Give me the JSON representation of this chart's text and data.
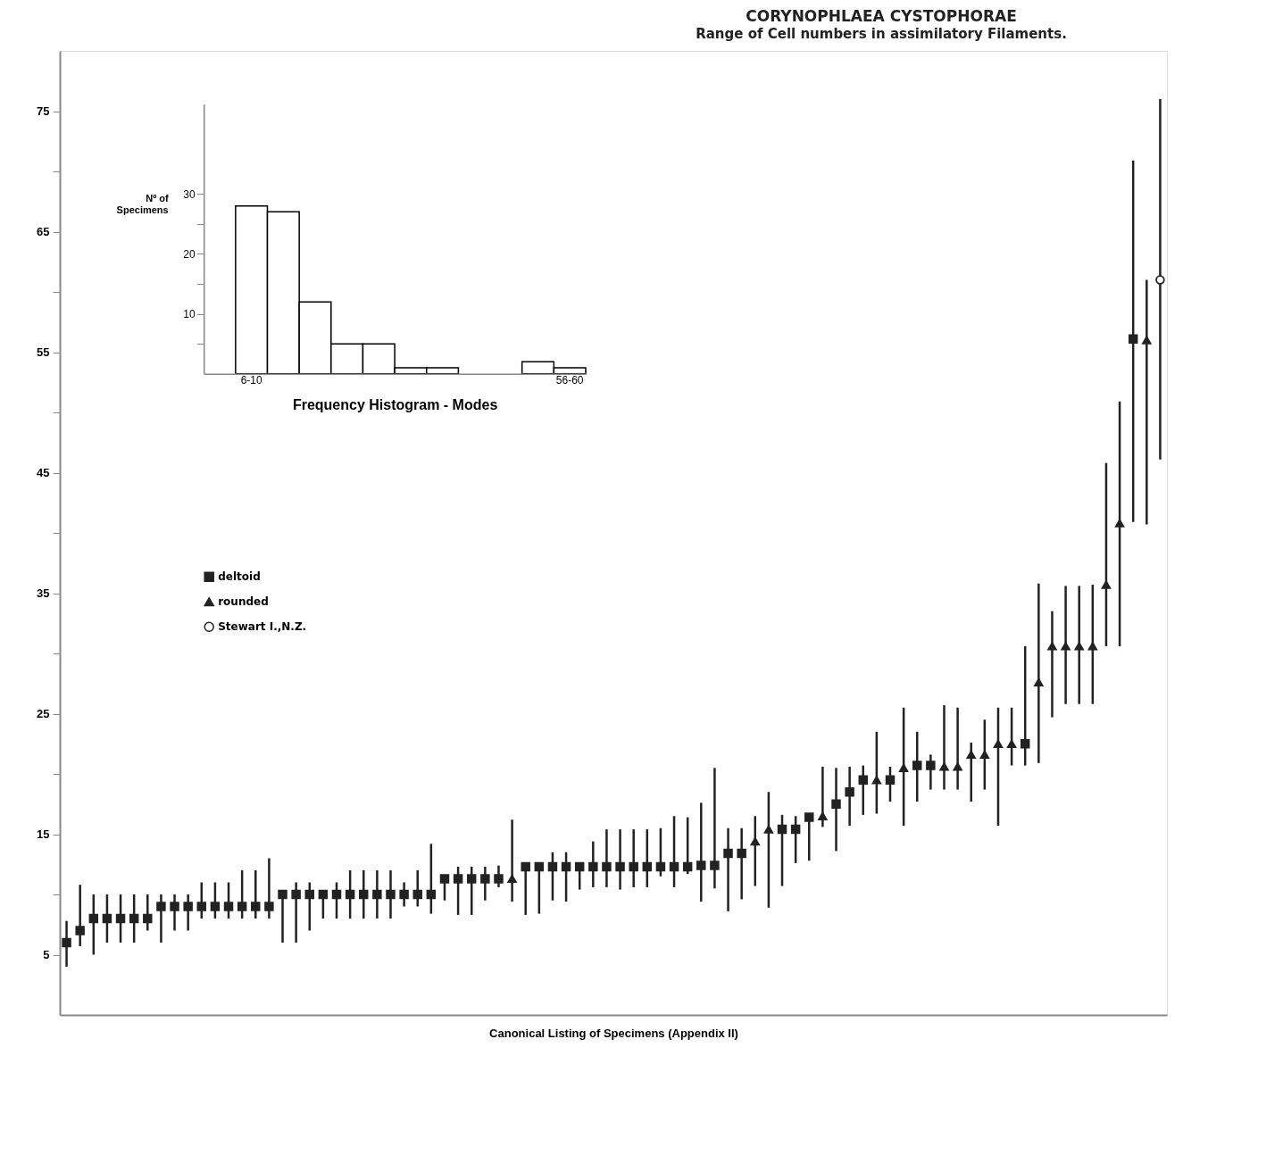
{
  "chart_data": [
    {
      "type": "scatter",
      "title": "CORYNOPHLAEA CYSTOPHORAE",
      "subtitle": "Range of Cell numbers in assimilatory Filaments.",
      "xlabel": "Canonical Listing of Specimens (Appendix II)",
      "categories": [
        null,
        null,
        null,
        null,
        null,
        null,
        null,
        null,
        null,
        null,
        null,
        null,
        null,
        null,
        null,
        null,
        null,
        null,
        null,
        null,
        null,
        null,
        null,
        null,
        null,
        null,
        null,
        null,
        null,
        null,
        null,
        null,
        null,
        null,
        null,
        null,
        null,
        null,
        null,
        null,
        null,
        null,
        null,
        null,
        null,
        null,
        null,
        null,
        null,
        null,
        null,
        null,
        null,
        null,
        null,
        null,
        null,
        null,
        null,
        null,
        null,
        null,
        null,
        null,
        null,
        null,
        null,
        null,
        null,
        null,
        null,
        null,
        null,
        null,
        null,
        null,
        null,
        null,
        null,
        null,
        null,
        null
      ],
      "series": [
        {
          "name": "deltoid",
          "color": "#222222",
          "marker": "square",
          "values": [
            6,
            7,
            8,
            8,
            8,
            8,
            8,
            9,
            9,
            9,
            9,
            9,
            9,
            9,
            9,
            9,
            10,
            10,
            10,
            10,
            10,
            10,
            10,
            10,
            10,
            10,
            10,
            10,
            11.3,
            11.3,
            11.3,
            11.3,
            11.3,
            null,
            12.3,
            12.3,
            12.3,
            12.3,
            12.3,
            12.3,
            12.3,
            12.3,
            12.3,
            12.3,
            12.3,
            12.3,
            12.3,
            12.4,
            12.4,
            13.4,
            13.4,
            null,
            null,
            15.4,
            15.4,
            16.4,
            null,
            17.5,
            18.5,
            19.5,
            null,
            19.5,
            null,
            20.7,
            20.7,
            null,
            null,
            null,
            null,
            null,
            null,
            22.5,
            null,
            null,
            null,
            null,
            null,
            null,
            null,
            56.1,
            null,
            null
          ],
          "errors": [
            [
              4,
              7.8
            ],
            [
              5.7,
              10.8
            ],
            [
              5,
              10
            ],
            [
              6,
              10
            ],
            [
              6,
              10
            ],
            [
              6,
              10
            ],
            [
              7,
              10
            ],
            [
              6,
              10
            ],
            [
              7,
              10
            ],
            [
              7,
              10
            ],
            [
              8,
              11
            ],
            [
              8,
              11
            ],
            [
              8,
              11
            ],
            [
              8,
              12
            ],
            [
              8,
              12
            ],
            [
              8,
              13
            ],
            [
              6,
              10
            ],
            [
              6,
              11
            ],
            [
              7,
              11
            ],
            [
              8,
              10
            ],
            [
              8,
              11
            ],
            [
              8,
              12
            ],
            [
              8,
              12
            ],
            [
              8,
              12
            ],
            [
              8,
              12
            ],
            [
              9,
              11
            ],
            [
              9,
              12
            ],
            [
              8.4,
              14.2
            ],
            [
              9.5,
              11.3
            ],
            [
              8.3,
              12.3
            ],
            [
              8.3,
              12.3
            ],
            [
              9.5,
              12.3
            ],
            [
              10.6,
              12.4
            ],
            null,
            [
              8.3,
              12.3
            ],
            [
              8.4,
              12.3
            ],
            [
              9.5,
              13.5
            ],
            [
              9.4,
              13.5
            ],
            [
              10.4,
              12.3
            ],
            [
              10.6,
              14.4
            ],
            [
              10.6,
              15.4
            ],
            [
              10.4,
              15.4
            ],
            [
              10.6,
              15.4
            ],
            [
              10.6,
              15.4
            ],
            [
              11.5,
              15.5
            ],
            [
              10.6,
              16.5
            ],
            [
              11.7,
              16.4
            ],
            [
              9.4,
              17.6
            ],
            [
              10.5,
              20.5
            ],
            [
              8.6,
              15.5
            ],
            [
              9.6,
              15.5
            ],
            null,
            null,
            [
              10.7,
              16.6
            ],
            [
              12.6,
              16.5
            ],
            [
              12.8,
              16.4
            ],
            null,
            [
              13.6,
              20.5
            ],
            [
              15.7,
              20.6
            ],
            [
              16.6,
              20.7
            ],
            null,
            [
              17.7,
              20.6
            ],
            null,
            [
              17.7,
              23.5
            ],
            [
              18.7,
              21.6
            ],
            null,
            null,
            null,
            null,
            null,
            null,
            [
              20.7,
              30.6
            ],
            null,
            null,
            null,
            null,
            null,
            null,
            null,
            [
              40.9,
              70.9
            ],
            null,
            null
          ]
        },
        {
          "name": "rounded",
          "color": "#222222",
          "marker": "triangle",
          "values": [
            null,
            null,
            null,
            null,
            null,
            null,
            null,
            null,
            null,
            null,
            null,
            null,
            null,
            null,
            null,
            null,
            null,
            null,
            null,
            null,
            null,
            null,
            null,
            null,
            null,
            null,
            null,
            null,
            null,
            null,
            null,
            null,
            null,
            11.3,
            null,
            null,
            null,
            null,
            null,
            null,
            null,
            null,
            null,
            null,
            null,
            null,
            null,
            null,
            null,
            null,
            null,
            14.4,
            15.4,
            null,
            null,
            null,
            16.5,
            null,
            null,
            null,
            19.5,
            null,
            20.5,
            null,
            null,
            20.6,
            20.6,
            21.6,
            21.6,
            22.5,
            22.5,
            null,
            27.6,
            30.6,
            30.6,
            30.6,
            30.6,
            35.7,
            40.8,
            null,
            56.0,
            null
          ],
          "errors": [
            null,
            null,
            null,
            null,
            null,
            null,
            null,
            null,
            null,
            null,
            null,
            null,
            null,
            null,
            null,
            null,
            null,
            null,
            null,
            null,
            null,
            null,
            null,
            null,
            null,
            null,
            null,
            null,
            null,
            null,
            null,
            null,
            null,
            [
              9.4,
              16.2
            ],
            null,
            null,
            null,
            null,
            null,
            null,
            null,
            null,
            null,
            null,
            null,
            null,
            null,
            null,
            null,
            null,
            null,
            [
              10.7,
              16.5
            ],
            [
              8.9,
              18.5
            ],
            null,
            null,
            null,
            [
              15.6,
              20.6
            ],
            null,
            null,
            null,
            [
              16.7,
              23.5
            ],
            null,
            [
              15.7,
              25.5
            ],
            null,
            null,
            [
              18.7,
              25.7
            ],
            [
              18.7,
              25.5
            ],
            [
              17.7,
              22.6
            ],
            [
              18.7,
              24.5
            ],
            [
              15.7,
              25.5
            ],
            [
              20.7,
              25.5
            ],
            null,
            [
              20.9,
              35.8
            ],
            [
              24.7,
              33.5
            ],
            [
              25.8,
              35.6
            ],
            [
              25.8,
              35.6
            ],
            [
              25.8,
              35.7
            ],
            [
              30.6,
              45.8
            ],
            [
              30.6,
              50.9
            ],
            null,
            [
              40.7,
              61.0
            ],
            null
          ]
        },
        {
          "name": "Stewart I.,N.Z.",
          "color": "#222222",
          "marker": "circle",
          "values": [
            null,
            null,
            null,
            null,
            null,
            null,
            null,
            null,
            null,
            null,
            null,
            null,
            null,
            null,
            null,
            null,
            null,
            null,
            null,
            null,
            null,
            null,
            null,
            null,
            null,
            null,
            null,
            null,
            null,
            null,
            null,
            null,
            null,
            null,
            null,
            null,
            null,
            null,
            null,
            null,
            null,
            null,
            null,
            null,
            null,
            null,
            null,
            null,
            null,
            null,
            null,
            null,
            null,
            null,
            null,
            null,
            null,
            null,
            null,
            null,
            null,
            null,
            null,
            null,
            null,
            null,
            null,
            null,
            null,
            null,
            null,
            null,
            null,
            null,
            null,
            null,
            null,
            null,
            null,
            null,
            null,
            61.0
          ],
          "errors": [
            null,
            null,
            null,
            null,
            null,
            null,
            null,
            null,
            null,
            null,
            null,
            null,
            null,
            null,
            null,
            null,
            null,
            null,
            null,
            null,
            null,
            null,
            null,
            null,
            null,
            null,
            null,
            null,
            null,
            null,
            null,
            null,
            null,
            null,
            null,
            null,
            null,
            null,
            null,
            null,
            null,
            null,
            null,
            null,
            null,
            null,
            null,
            null,
            null,
            null,
            null,
            null,
            null,
            null,
            null,
            null,
            null,
            null,
            null,
            null,
            null,
            null,
            null,
            null,
            null,
            null,
            null,
            null,
            null,
            null,
            null,
            null,
            null,
            null,
            null,
            null,
            null,
            null,
            null,
            null,
            null,
            [
              46.1,
              76.0
            ]
          ]
        }
      ],
      "ylim": [
        0,
        80
      ],
      "yticks": [
        5,
        {
          "value": 10,
          "label": null
        },
        15,
        {
          "value": 20,
          "label": null
        },
        25,
        {
          "value": 30,
          "label": null
        },
        35,
        {
          "value": 40,
          "label": null
        },
        45,
        {
          "value": 50,
          "label": null
        },
        55,
        {
          "value": 60,
          "label": null
        },
        65,
        {
          "value": 70,
          "label": null
        },
        75
      ],
      "legend": "left"
    },
    {
      "type": "bar",
      "xlabel": "Frequency Histogram - Modes",
      "ylabel": "Nº of Specimens",
      "categories": [
        "6-10",
        null,
        null,
        null,
        null,
        null,
        null,
        null,
        null,
        null,
        "56-60"
      ],
      "values": [
        28,
        27,
        12,
        5,
        5,
        1,
        1,
        0,
        0,
        2,
        1
      ],
      "color": "#ffffff",
      "ylim": [
        0,
        45
      ],
      "yticks": [
        {
          "value": 5,
          "label": null
        },
        10,
        {
          "value": 15,
          "label": null
        },
        20,
        {
          "value": 25,
          "label": null
        },
        30
      ]
    }
  ]
}
